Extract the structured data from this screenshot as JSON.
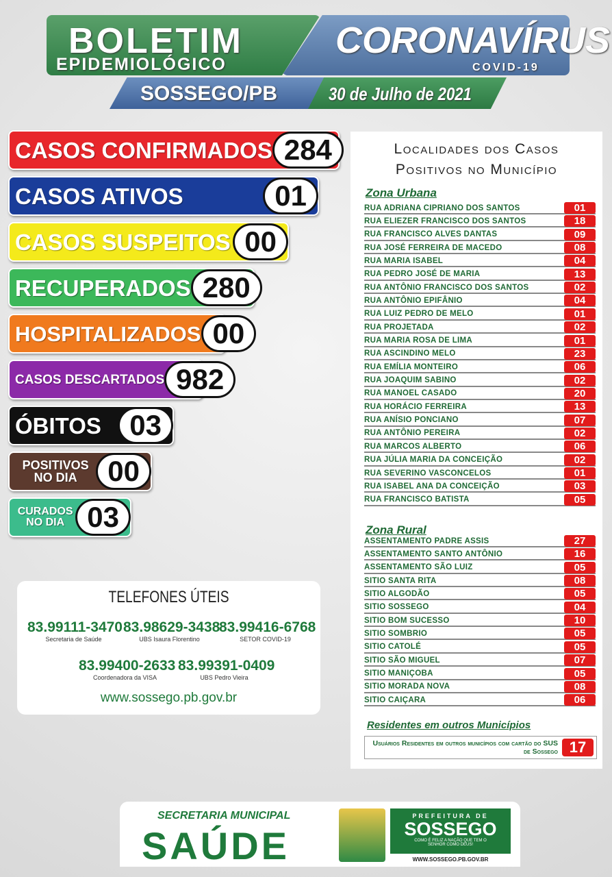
{
  "header": {
    "title": "BOLETIM",
    "subtitle": "EPIDEMIOLÓGICO",
    "title2": "CORONAVÍRUS",
    "subtitle2": "COVID-19",
    "place": "SOSSEGO/PB",
    "date": "30 de Julho de 2021"
  },
  "stats": [
    {
      "label": [
        "CASOS CONFIRMADOS"
      ],
      "value": "284",
      "color": "#e8262b"
    },
    {
      "label": [
        "CASOS ATIVOS"
      ],
      "value": "01",
      "color": "#1a3d9a"
    },
    {
      "label": [
        "CASOS SUSPEITOS"
      ],
      "value": "00",
      "color": "#f4ea1b"
    },
    {
      "label": [
        "RECUPERADOS"
      ],
      "value": "280",
      "color": "#3cb85a"
    },
    {
      "label": [
        "HOSPITALIZADOS"
      ],
      "value": "00",
      "color": "#f07a1e"
    },
    {
      "label": [
        "CASOS DESCARTADOS"
      ],
      "value": "982",
      "color": "#8c2aa8"
    },
    {
      "label": [
        "ÓBITOS"
      ],
      "value": "03",
      "color": "#111111"
    },
    {
      "label": [
        "POSITIVOS",
        "NO DIA"
      ],
      "value": "00",
      "color": "#5c3a2e"
    },
    {
      "label": [
        "CURADOS",
        "NO DIA"
      ],
      "value": "03",
      "color": "#3cbc8c"
    }
  ],
  "locations": {
    "title": [
      "Localidades dos Casos",
      "Positivos no Município"
    ],
    "urban": {
      "heading": "Zona Urbana",
      "rows": [
        [
          "RUA ADRIANA CIPRIANO DOS SANTOS",
          "01"
        ],
        [
          "RUA ELIEZER FRANCISCO DOS SANTOS",
          "18"
        ],
        [
          "RUA FRANCISCO ALVES DANTAS",
          "09"
        ],
        [
          "RUA JOSÉ FERREIRA DE MACEDO",
          "08"
        ],
        [
          "RUA MARIA ISABEL",
          "04"
        ],
        [
          "RUA PEDRO JOSÉ DE MARIA",
          "13"
        ],
        [
          "RUA ANTÔNIO FRANCISCO DOS SANTOS",
          "02"
        ],
        [
          "RUA ANTÔNIO EPIFÂNIO",
          "04"
        ],
        [
          "RUA LUIZ PEDRO DE MELO",
          "01"
        ],
        [
          "RUA PROJETADA",
          "02"
        ],
        [
          "RUA MARIA ROSA DE LIMA",
          "01"
        ],
        [
          "RUA ASCINDINO MELO",
          "23"
        ],
        [
          "RUA EMÍLIA MONTEIRO",
          "06"
        ],
        [
          "RUA JOAQUIM SABINO",
          "02"
        ],
        [
          "RUA MANOEL CASADO",
          "20"
        ],
        [
          "RUA HORÁCIO FERREIRA",
          "13"
        ],
        [
          "RUA ANÍSIO PONCIANO",
          "07"
        ],
        [
          "RUA ANTÔNIO PEREIRA",
          "02"
        ],
        [
          "RUA MARCOS ALBERTO",
          "06"
        ],
        [
          "RUA JÚLIA MARIA DA CONCEIÇÃO",
          "02"
        ],
        [
          "RUA SEVERINO VASCONCELOS",
          "01"
        ],
        [
          "RUA ISABEL ANA DA CONCEIÇÃO",
          "03"
        ],
        [
          "RUA FRANCISCO BATISTA",
          "05"
        ]
      ]
    },
    "rural": {
      "heading": "Zona Rural",
      "rows": [
        [
          "ASSENTAMENTO PADRE ASSIS",
          "27"
        ],
        [
          "ASSENTAMENTO SANTO ANTÔNIO",
          "16"
        ],
        [
          "ASSENTAMENTO SÃO LUIZ",
          "05"
        ],
        [
          "SITIO SANTA RITA",
          "08"
        ],
        [
          "SITIO ALGODÃO",
          "05"
        ],
        [
          "SITIO SOSSEGO",
          "04"
        ],
        [
          "SITIO BOM SUCESSO",
          "10"
        ],
        [
          "SITIO SOMBRIO",
          "05"
        ],
        [
          "SITIO CATOLÉ",
          "05"
        ],
        [
          "SITIO SÃO MIGUEL",
          "07"
        ],
        [
          "SITIO MANIÇOBA",
          "05"
        ],
        [
          "SITIO MORADA NOVA",
          "08"
        ],
        [
          "SITIO CAIÇARA",
          "06"
        ]
      ]
    },
    "other": {
      "heading": "Residentes em outros Municípios",
      "text": "Usuários Residentes em outros municípios com cartão do SUS de Sossego",
      "count": "17"
    }
  },
  "phones": {
    "title": "TELEFONES ÚTEIS",
    "entries": [
      {
        "number": "83.99111-3470",
        "label": "Secretaria de Saúde"
      },
      {
        "number": "83.98629-3438",
        "label": "UBS Isaura Florentino"
      },
      {
        "number": "83.99416-6768",
        "label": "SETOR COVID-19"
      },
      {
        "number": "83.99400-2633",
        "label": "Coordenadora da VISA"
      },
      {
        "number": "83.99391-0409",
        "label": "UBS Pedro Vieira"
      }
    ],
    "website": "www.sossego.pb.gov.br"
  },
  "footer": {
    "secretaria": "SECRETARIA MUNICIPAL",
    "saude": "SAÚDE",
    "prefeitura": "PREFEITURA DE",
    "sossego": "SOSSEGO",
    "motto": "COMO É FELIZ A NAÇÃO QUE TEM O SENHOR COMO DEUS!",
    "url": "WWW.SOSSEGO.PB.GOV.BR"
  }
}
